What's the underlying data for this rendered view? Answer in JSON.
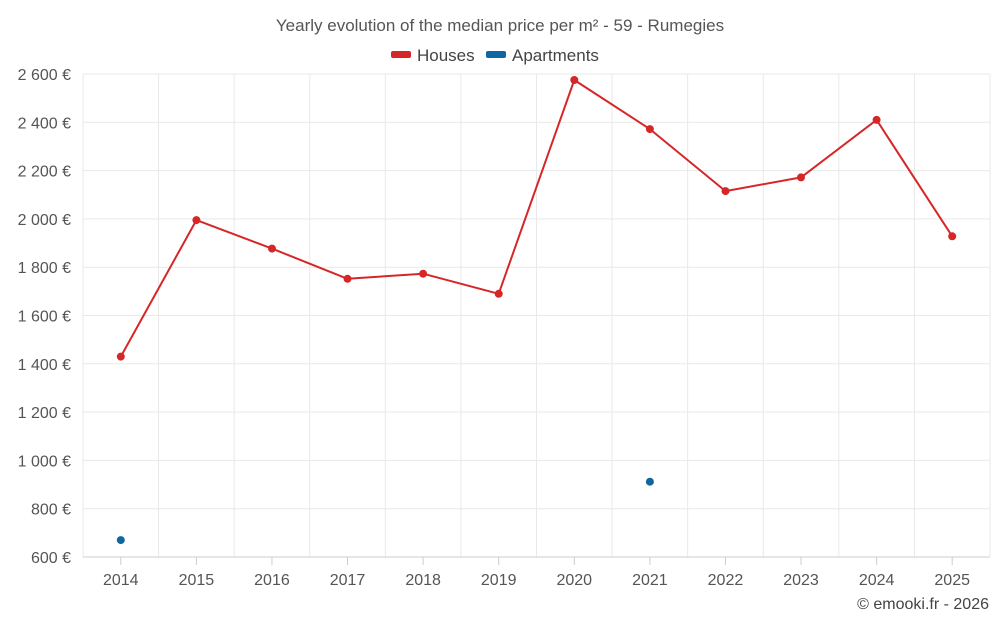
{
  "chart_data": {
    "type": "line",
    "title": "Yearly evolution of the median price per m² - 59 - Rumegies",
    "categories": [
      "2014",
      "2015",
      "2016",
      "2017",
      "2018",
      "2019",
      "2020",
      "2021",
      "2022",
      "2023",
      "2024",
      "2025"
    ],
    "ylim": [
      600,
      2600
    ],
    "yticks": [
      600,
      800,
      1000,
      1200,
      1400,
      1600,
      1800,
      2000,
      2200,
      2400,
      2600
    ],
    "ytick_labels": [
      "600 €",
      "800 €",
      "1 000 €",
      "1 200 €",
      "1 400 €",
      "1 600 €",
      "1 800 €",
      "2 000 €",
      "2 200 €",
      "2 400 €",
      "2 600 €"
    ],
    "grid": true,
    "legend_position": "top-center",
    "series": [
      {
        "name": "Houses",
        "color": "#d62728",
        "values": [
          1430,
          1995,
          1877,
          1752,
          1773,
          1690,
          2575,
          2372,
          2115,
          2172,
          2410,
          1928
        ]
      },
      {
        "name": "Apartments",
        "color": "#0f67a1",
        "values": [
          670,
          null,
          null,
          null,
          null,
          null,
          null,
          912,
          null,
          null,
          null,
          null
        ]
      }
    ]
  },
  "credit": "© emooki.fr - 2026"
}
